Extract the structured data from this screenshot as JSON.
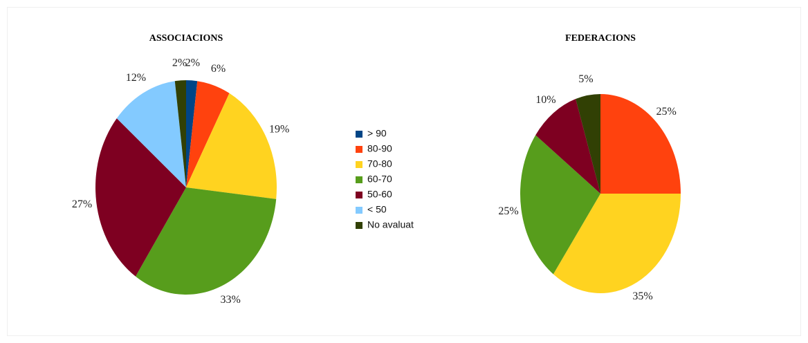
{
  "chart_data": [
    {
      "type": "pie",
      "title": "ASSOCIACIONS",
      "categories": [
        "> 90",
        "80-90",
        "70-80",
        "60-70",
        "50-60",
        "< 50",
        "No avaluat"
      ],
      "values": [
        2,
        6,
        19,
        33,
        27,
        12,
        2
      ],
      "colors": [
        "#004586",
        "#ff420e",
        "#ffd320",
        "#579d1c",
        "#7e0021",
        "#83caff",
        "#314004"
      ],
      "legend": "right"
    },
    {
      "type": "pie",
      "title": "FEDERACIONS",
      "categories": [
        "80-90",
        "70-80",
        "60-70",
        "50-60",
        "No avaluat"
      ],
      "values": [
        25,
        35,
        25,
        10,
        5
      ],
      "colors": [
        "#ff420e",
        "#ffd320",
        "#579d1c",
        "#7e0021",
        "#314004"
      ]
    }
  ]
}
